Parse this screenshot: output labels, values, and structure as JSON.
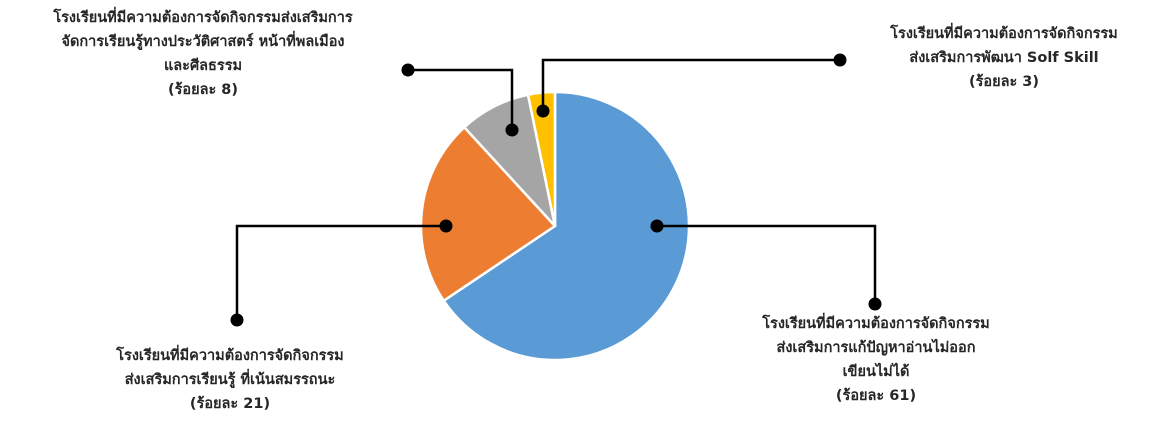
{
  "chart_data": {
    "type": "pie",
    "slices": [
      {
        "value": 61,
        "color": "#5B9BD5",
        "label_lines": [
          "โรงเรียนที่มีความต้องการจัดกิจกรรม",
          "ส่งเสริมการแก้ปัญหาอ่านไม่ออก",
          "เขียนไม่ได้",
          "(ร้อยละ 61)"
        ]
      },
      {
        "value": 21,
        "color": "#ED7D31",
        "label_lines": [
          "โรงเรียนที่มีความต้องการจัดกิจกรรม",
          "ส่งเสริมการเรียนรู้ ที่เน้นสมรรถนะ",
          "(ร้อยละ 21)"
        ]
      },
      {
        "value": 8,
        "color": "#A5A5A5",
        "label_lines": [
          "โรงเรียนที่มีความต้องการจัดกิจกรรมส่งเสริมการ",
          "จัดการเรียนรู้ทางประวัติศาสตร์ หน้าที่พลเมือง",
          "และศีลธรรม",
          "(ร้อยละ 8)"
        ]
      },
      {
        "value": 3,
        "color": "#FFC000",
        "label_lines": [
          "โรงเรียนที่มีความต้องการจัดกิจกรรม",
          "ส่งเสริมการพัฒนา Solf Skill",
          "(ร้อยละ 3)"
        ]
      }
    ],
    "start_angle": "12 o'clock",
    "direction": "clockwise",
    "legend": "none"
  }
}
